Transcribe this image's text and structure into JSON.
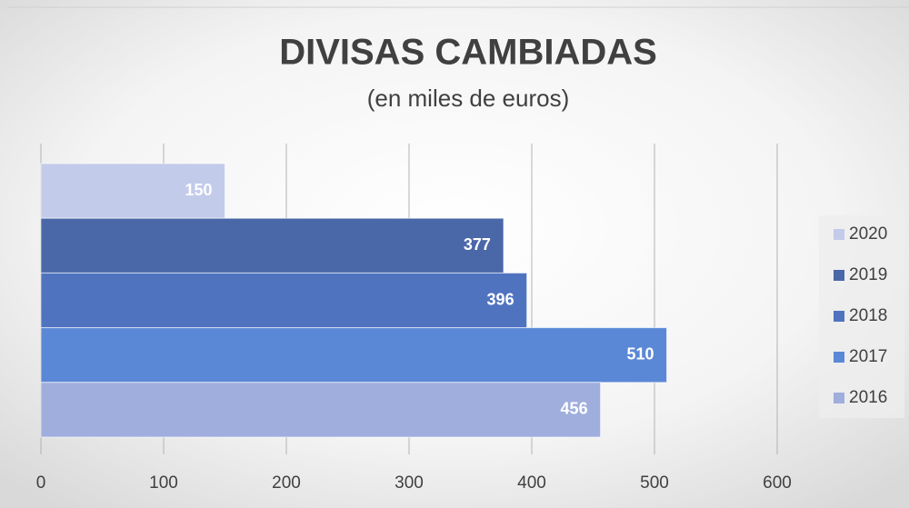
{
  "chart_data": {
    "type": "bar",
    "orientation": "horizontal",
    "title": "DIVISAS CAMBIADAS",
    "subtitle": "(en miles de euros)",
    "categories": [
      null
    ],
    "series": [
      {
        "name": "2020",
        "color": "#c3cbea",
        "values": [
          150
        ]
      },
      {
        "name": "2019",
        "color": "#4a67a8",
        "values": [
          377
        ]
      },
      {
        "name": "2018",
        "color": "#5073c0",
        "values": [
          396
        ]
      },
      {
        "name": "2017",
        "color": "#5b88d6",
        "values": [
          510
        ]
      },
      {
        "name": "2016",
        "color": "#a0aedd",
        "values": [
          456
        ]
      }
    ],
    "xlim": [
      0,
      600
    ],
    "xticks": [
      0,
      100,
      200,
      300,
      400,
      500,
      600
    ],
    "grid": true,
    "legend": "right"
  }
}
